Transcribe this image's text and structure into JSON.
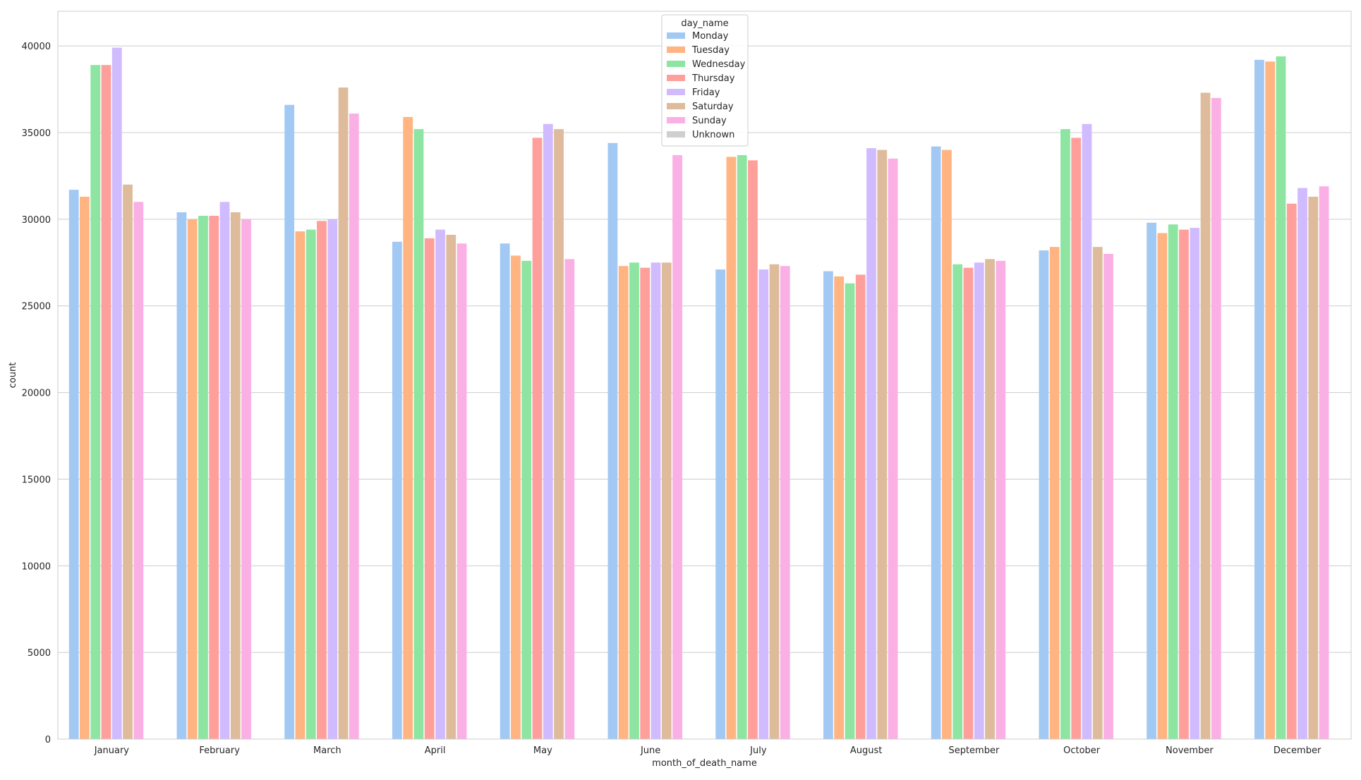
{
  "chart_data": {
    "type": "bar",
    "xlabel": "month_of_death_name",
    "ylabel": "count",
    "ylim": [
      0,
      42000
    ],
    "yticks": [
      0,
      5000,
      10000,
      15000,
      20000,
      25000,
      30000,
      35000,
      40000
    ],
    "grid": "horizontal",
    "legend": {
      "title": "day_name",
      "placement": "top-center"
    },
    "categories": [
      "January",
      "February",
      "March",
      "April",
      "May",
      "June",
      "July",
      "August",
      "September",
      "October",
      "November",
      "December"
    ],
    "series": [
      {
        "name": "Monday",
        "color": "#a1c9f4",
        "values": [
          31700,
          30400,
          36600,
          28700,
          28600,
          34400,
          27100,
          27000,
          34200,
          28200,
          29800,
          39200
        ]
      },
      {
        "name": "Tuesday",
        "color": "#ffb482",
        "values": [
          31300,
          30000,
          29300,
          35900,
          27900,
          27300,
          33600,
          26700,
          34000,
          28400,
          29200,
          39100
        ]
      },
      {
        "name": "Wednesday",
        "color": "#8de5a1",
        "values": [
          38900,
          30200,
          29400,
          35200,
          27600,
          27500,
          33700,
          26300,
          27400,
          35200,
          29700,
          39400
        ]
      },
      {
        "name": "Thursday",
        "color": "#ff9f9b",
        "values": [
          38900,
          30200,
          29900,
          28900,
          34700,
          27200,
          33400,
          26800,
          27200,
          34700,
          29400,
          30900
        ]
      },
      {
        "name": "Friday",
        "color": "#d0bbff",
        "values": [
          39900,
          31000,
          30000,
          29400,
          35500,
          27500,
          27100,
          34100,
          27500,
          35500,
          29500,
          31800
        ]
      },
      {
        "name": "Saturday",
        "color": "#debb9b",
        "values": [
          32000,
          30400,
          37600,
          29100,
          35200,
          27500,
          27400,
          34000,
          27700,
          28400,
          37300,
          31300
        ]
      },
      {
        "name": "Sunday",
        "color": "#fab0e4",
        "values": [
          31000,
          30000,
          36100,
          28600,
          27700,
          33700,
          27300,
          33500,
          27600,
          28000,
          37000,
          31900
        ]
      },
      {
        "name": "Unknown",
        "color": "#cfcfcf",
        "values": [
          0,
          0,
          0,
          0,
          0,
          0,
          0,
          0,
          0,
          0,
          0,
          0
        ]
      }
    ]
  }
}
